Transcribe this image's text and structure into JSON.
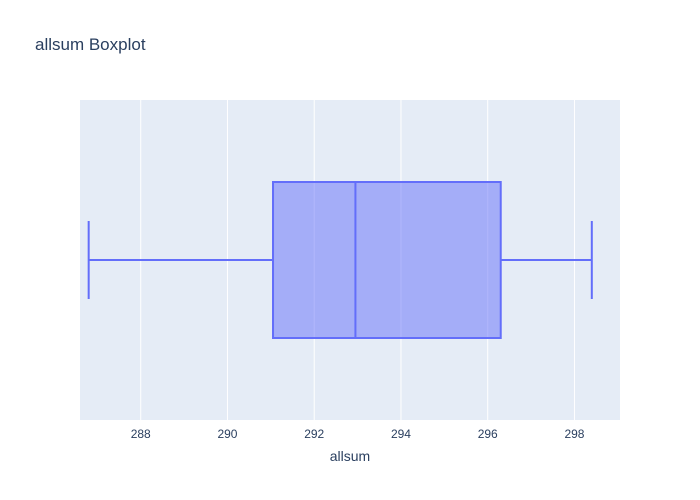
{
  "chart_data": {
    "type": "box",
    "title": "allsum Boxplot",
    "xlabel": "allsum",
    "ylabel": "",
    "orientation": "horizontal",
    "xlim": [
      286.6,
      299.05
    ],
    "xticks": [
      288,
      290,
      292,
      294,
      296,
      298
    ],
    "grid": true,
    "colors": {
      "plot_background": "#e5ecf6",
      "grid": "#ffffff",
      "box_line": "#636efa",
      "box_fill": "rgba(99,110,250,0.5)",
      "text": "#2a3f5f"
    },
    "box": {
      "lower_whisker": 286.8,
      "q1": 291.05,
      "median": 292.95,
      "q3": 296.3,
      "upper_whisker": 298.4
    }
  }
}
